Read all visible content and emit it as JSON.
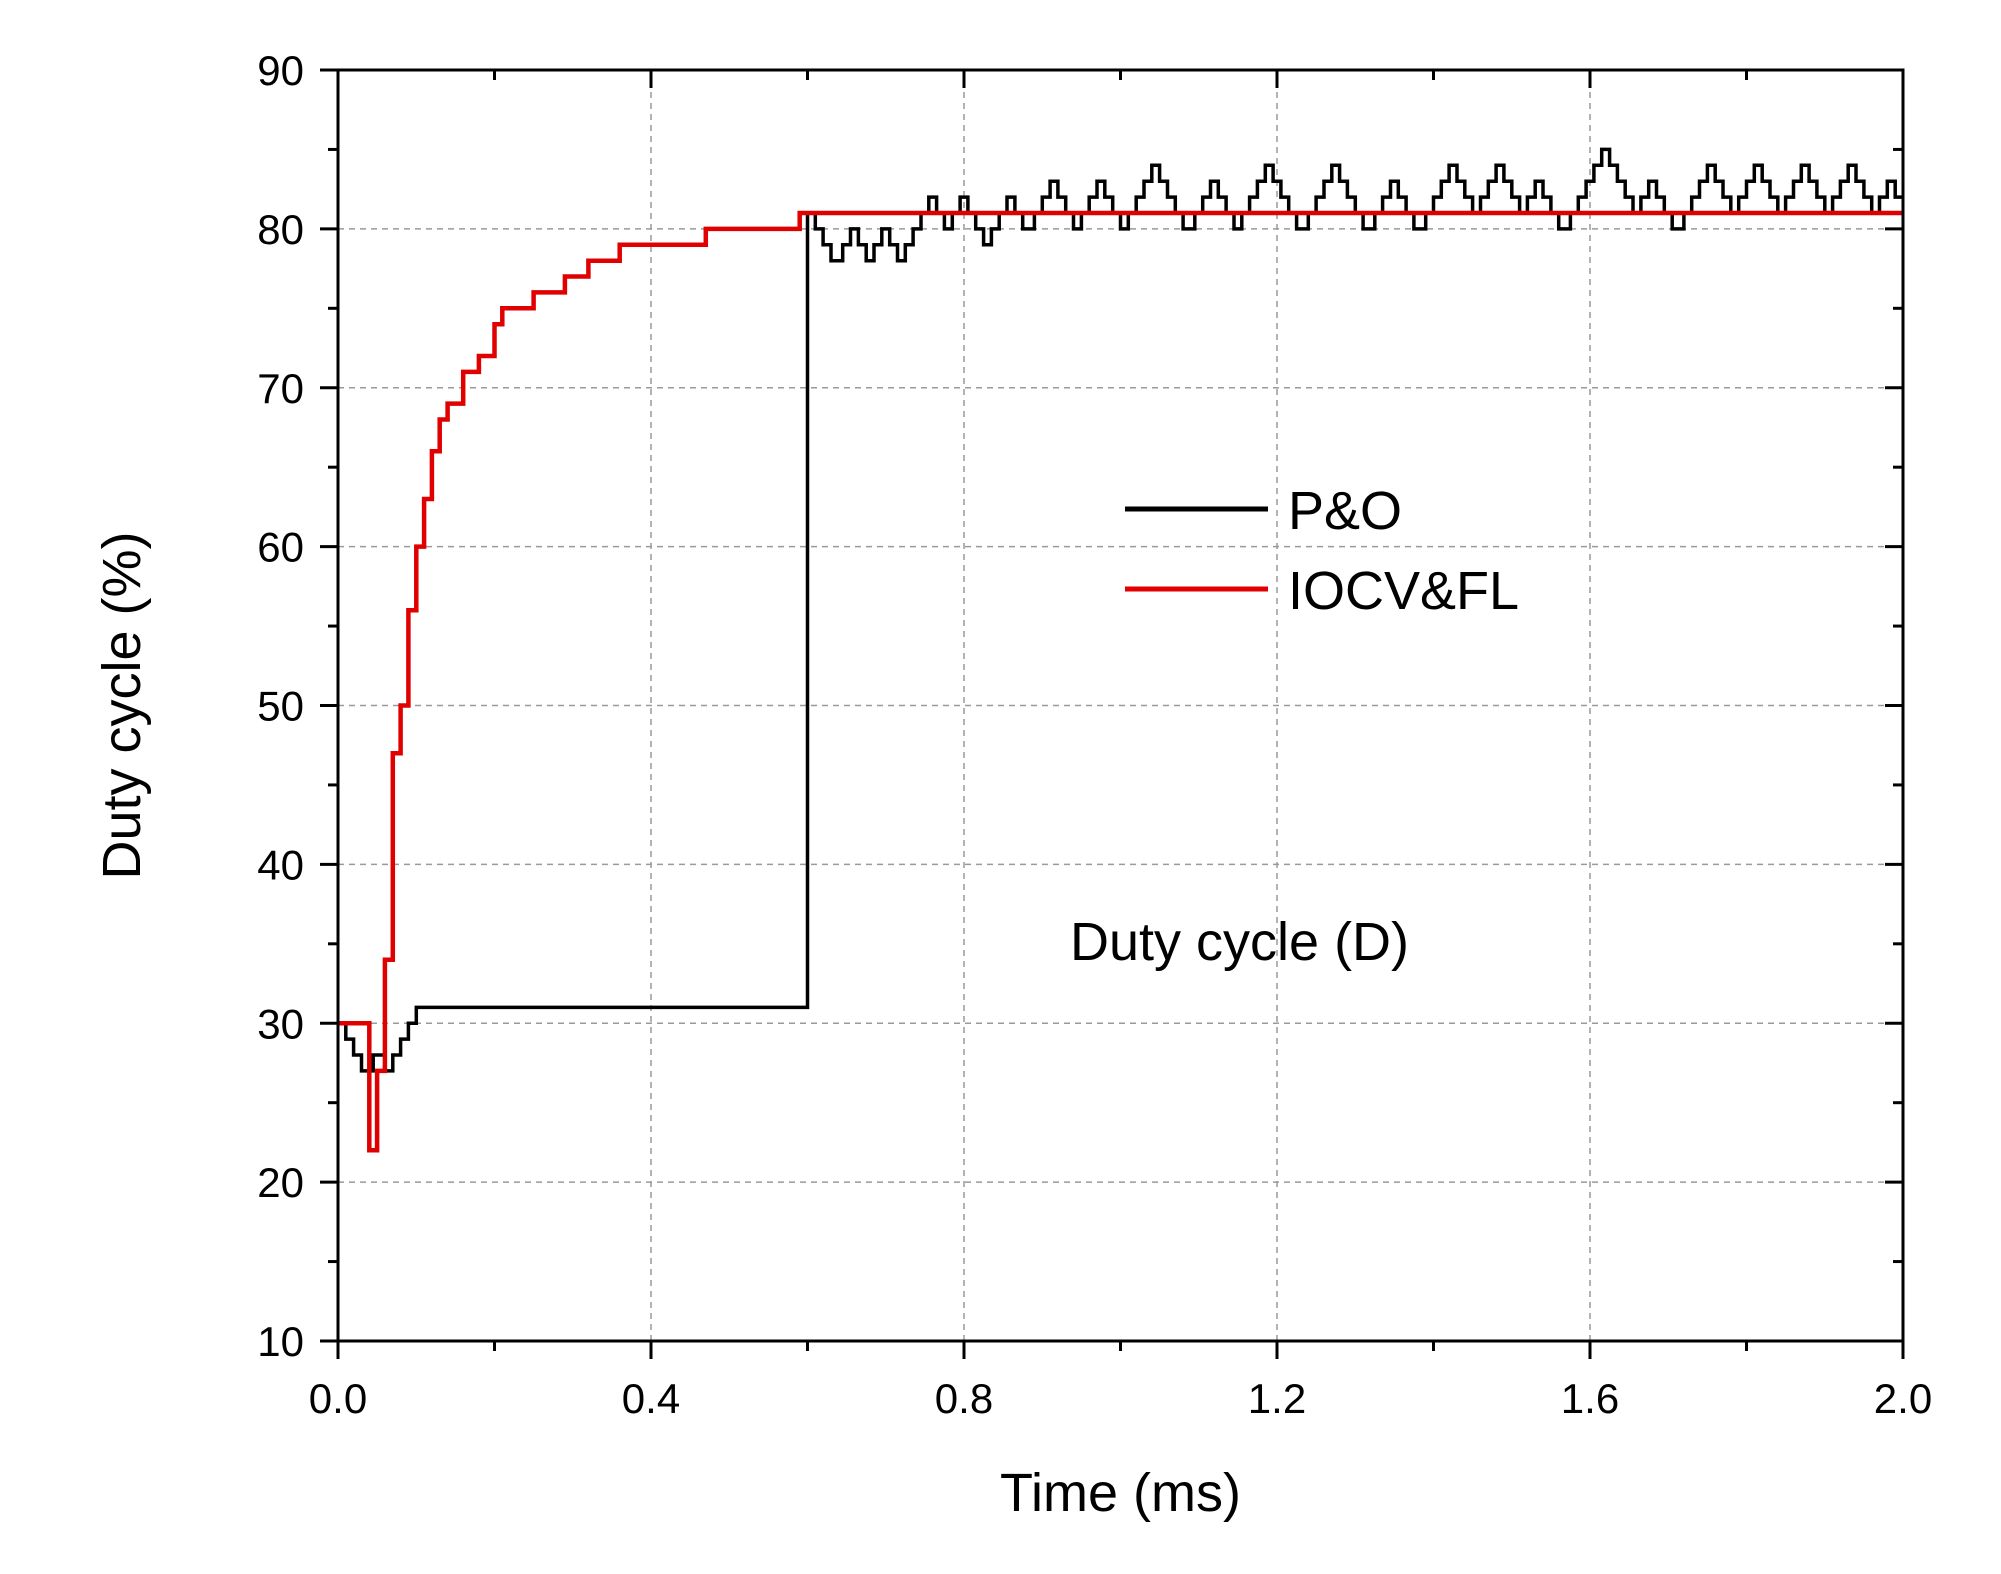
{
  "chart_data": {
    "type": "line",
    "title": "",
    "xlabel": "Time (ms)",
    "ylabel": "Duty cycle (%)",
    "xlim": [
      0.0,
      2.0
    ],
    "ylim": [
      10,
      90
    ],
    "x_ticks": [
      0.0,
      0.4,
      0.8,
      1.2,
      1.6,
      2.0
    ],
    "x_tick_labels": [
      "0.0",
      "0.4",
      "0.8",
      "1.2",
      "1.6",
      "2.0"
    ],
    "y_ticks": [
      10,
      20,
      30,
      40,
      50,
      60,
      70,
      80,
      90
    ],
    "y_tick_labels": [
      "10",
      "20",
      "30",
      "40",
      "50",
      "60",
      "70",
      "80",
      "90"
    ],
    "grid": true,
    "legend_position": "center-right",
    "annotation": "Duty cycle (D)",
    "colors": {
      "P&O": "#000000",
      "IOCV&FL": "#e00000"
    },
    "series": [
      {
        "name": "P&O",
        "step": true,
        "points": [
          [
            0.0,
            30
          ],
          [
            0.01,
            29
          ],
          [
            0.02,
            28
          ],
          [
            0.03,
            27
          ],
          [
            0.045,
            28
          ],
          [
            0.06,
            27
          ],
          [
            0.07,
            28
          ],
          [
            0.08,
            29
          ],
          [
            0.09,
            30
          ],
          [
            0.1,
            31
          ],
          [
            0.6,
            81
          ],
          [
            0.61,
            80
          ],
          [
            0.62,
            79
          ],
          [
            0.63,
            78
          ],
          [
            0.645,
            79
          ],
          [
            0.655,
            80
          ],
          [
            0.665,
            79
          ],
          [
            0.675,
            78
          ],
          [
            0.685,
            79
          ],
          [
            0.695,
            80
          ],
          [
            0.705,
            79
          ],
          [
            0.715,
            78
          ],
          [
            0.725,
            79
          ],
          [
            0.735,
            80
          ],
          [
            0.745,
            81
          ],
          [
            0.755,
            82
          ],
          [
            0.765,
            81
          ],
          [
            0.775,
            80
          ],
          [
            0.785,
            81
          ],
          [
            0.795,
            82
          ],
          [
            0.805,
            81
          ],
          [
            0.815,
            80
          ],
          [
            0.825,
            79
          ],
          [
            0.835,
            80
          ],
          [
            0.845,
            81
          ],
          [
            0.855,
            82
          ],
          [
            0.865,
            81
          ],
          [
            0.875,
            80
          ],
          [
            0.89,
            81
          ],
          [
            0.9,
            82
          ],
          [
            0.91,
            83
          ],
          [
            0.92,
            82
          ],
          [
            0.93,
            81
          ],
          [
            0.94,
            80
          ],
          [
            0.95,
            81
          ],
          [
            0.96,
            82
          ],
          [
            0.97,
            83
          ],
          [
            0.98,
            82
          ],
          [
            0.99,
            81
          ],
          [
            1.0,
            80
          ],
          [
            1.01,
            81
          ],
          [
            1.02,
            82
          ],
          [
            1.03,
            83
          ],
          [
            1.04,
            84
          ],
          [
            1.05,
            83
          ],
          [
            1.06,
            82
          ],
          [
            1.07,
            81
          ],
          [
            1.08,
            80
          ],
          [
            1.095,
            81
          ],
          [
            1.105,
            82
          ],
          [
            1.115,
            83
          ],
          [
            1.125,
            82
          ],
          [
            1.135,
            81
          ],
          [
            1.145,
            80
          ],
          [
            1.155,
            81
          ],
          [
            1.165,
            82
          ],
          [
            1.175,
            83
          ],
          [
            1.185,
            84
          ],
          [
            1.195,
            83
          ],
          [
            1.205,
            82
          ],
          [
            1.215,
            81
          ],
          [
            1.225,
            80
          ],
          [
            1.24,
            81
          ],
          [
            1.25,
            82
          ],
          [
            1.26,
            83
          ],
          [
            1.27,
            84
          ],
          [
            1.28,
            83
          ],
          [
            1.29,
            82
          ],
          [
            1.3,
            81
          ],
          [
            1.31,
            80
          ],
          [
            1.325,
            81
          ],
          [
            1.335,
            82
          ],
          [
            1.345,
            83
          ],
          [
            1.355,
            82
          ],
          [
            1.365,
            81
          ],
          [
            1.375,
            80
          ],
          [
            1.39,
            81
          ],
          [
            1.4,
            82
          ],
          [
            1.41,
            83
          ],
          [
            1.42,
            84
          ],
          [
            1.43,
            83
          ],
          [
            1.44,
            82
          ],
          [
            1.45,
            81
          ],
          [
            1.46,
            82
          ],
          [
            1.47,
            83
          ],
          [
            1.48,
            84
          ],
          [
            1.49,
            83
          ],
          [
            1.5,
            82
          ],
          [
            1.51,
            81
          ],
          [
            1.52,
            82
          ],
          [
            1.53,
            83
          ],
          [
            1.54,
            82
          ],
          [
            1.55,
            81
          ],
          [
            1.56,
            80
          ],
          [
            1.575,
            81
          ],
          [
            1.585,
            82
          ],
          [
            1.595,
            83
          ],
          [
            1.605,
            84
          ],
          [
            1.615,
            85
          ],
          [
            1.625,
            84
          ],
          [
            1.635,
            83
          ],
          [
            1.645,
            82
          ],
          [
            1.655,
            81
          ],
          [
            1.665,
            82
          ],
          [
            1.675,
            83
          ],
          [
            1.685,
            82
          ],
          [
            1.695,
            81
          ],
          [
            1.705,
            80
          ],
          [
            1.72,
            81
          ],
          [
            1.73,
            82
          ],
          [
            1.74,
            83
          ],
          [
            1.75,
            84
          ],
          [
            1.76,
            83
          ],
          [
            1.77,
            82
          ],
          [
            1.78,
            81
          ],
          [
            1.79,
            82
          ],
          [
            1.8,
            83
          ],
          [
            1.81,
            84
          ],
          [
            1.82,
            83
          ],
          [
            1.83,
            82
          ],
          [
            1.84,
            81
          ],
          [
            1.85,
            82
          ],
          [
            1.86,
            83
          ],
          [
            1.87,
            84
          ],
          [
            1.88,
            83
          ],
          [
            1.89,
            82
          ],
          [
            1.9,
            81
          ],
          [
            1.91,
            82
          ],
          [
            1.92,
            83
          ],
          [
            1.93,
            84
          ],
          [
            1.94,
            83
          ],
          [
            1.95,
            82
          ],
          [
            1.96,
            81
          ],
          [
            1.97,
            82
          ],
          [
            1.98,
            83
          ],
          [
            1.99,
            82
          ],
          [
            2.0,
            82
          ]
        ]
      },
      {
        "name": "IOCV&FL",
        "step": true,
        "points": [
          [
            0.0,
            30
          ],
          [
            0.04,
            22
          ],
          [
            0.05,
            27
          ],
          [
            0.06,
            34
          ],
          [
            0.07,
            47
          ],
          [
            0.08,
            50
          ],
          [
            0.09,
            56
          ],
          [
            0.1,
            60
          ],
          [
            0.11,
            63
          ],
          [
            0.12,
            66
          ],
          [
            0.13,
            68
          ],
          [
            0.14,
            69
          ],
          [
            0.16,
            71
          ],
          [
            0.18,
            72
          ],
          [
            0.2,
            74
          ],
          [
            0.21,
            75
          ],
          [
            0.25,
            76
          ],
          [
            0.29,
            77
          ],
          [
            0.32,
            78
          ],
          [
            0.36,
            79
          ],
          [
            0.47,
            80
          ],
          [
            0.59,
            81
          ],
          [
            2.0,
            81
          ]
        ]
      }
    ]
  }
}
